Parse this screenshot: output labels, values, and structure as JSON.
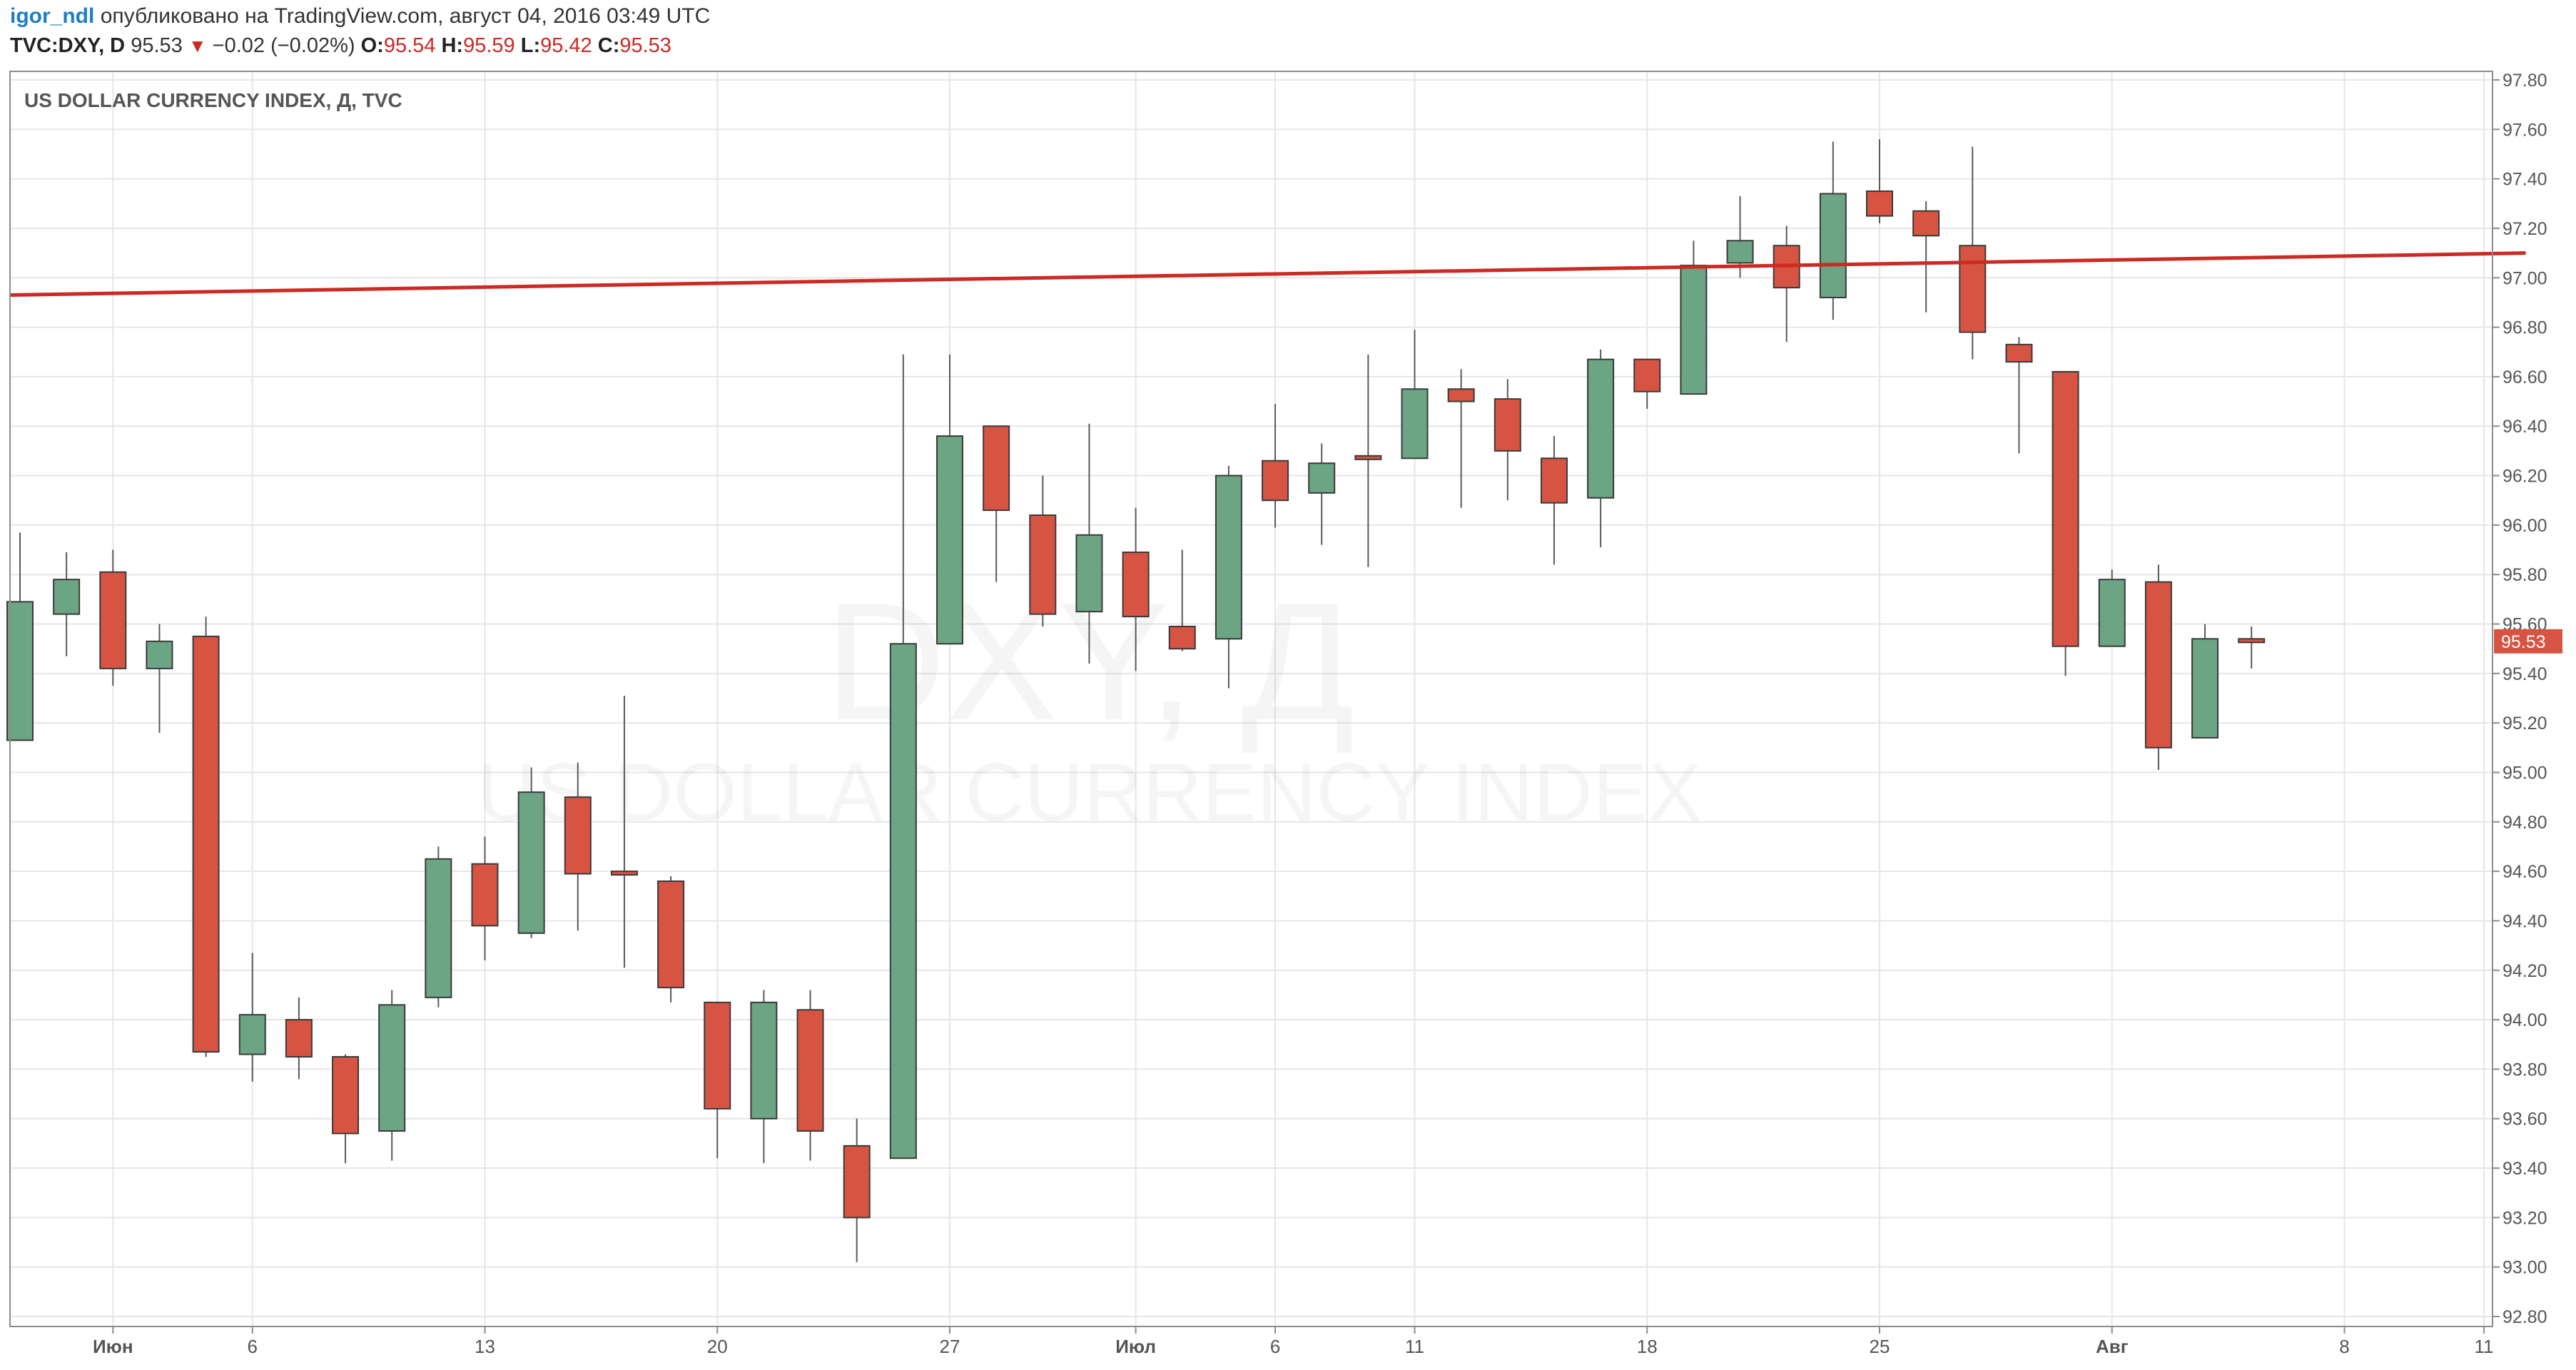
{
  "header": {
    "username": "igor_ndl",
    "published_text": "опубликовано на TradingView.com, август 04, 2016 03:49 UTC",
    "symbol": "TVC:DXY, D",
    "last": "95.53",
    "change": "−0.02 (−0.02%)",
    "o_label": "O:",
    "o_value": "95.54",
    "h_label": "H:",
    "h_value": "95.59",
    "l_label": "L:",
    "l_value": "95.42",
    "c_label": "C:",
    "c_value": "95.53"
  },
  "chart_data": {
    "type": "candlestick",
    "title": "US DOLLAR CURRENCY INDEX, Д, TVC",
    "watermark_symbol": "DXY, Д",
    "watermark_name": "US DOLLAR CURRENCY INDEX",
    "y_ticks": [
      "97.80",
      "97.60",
      "97.40",
      "97.20",
      "97.00",
      "96.80",
      "96.60",
      "96.40",
      "96.20",
      "96.00",
      "95.80",
      "95.60",
      "95.40",
      "95.20",
      "95.00",
      "94.80",
      "94.60",
      "94.40",
      "94.20",
      "94.00",
      "93.80",
      "93.60",
      "93.40",
      "93.20",
      "93.00",
      "92.80"
    ],
    "ylim": [
      92.8,
      97.8
    ],
    "x_labels": [
      {
        "label": "Июн",
        "bar": 2,
        "bold": true
      },
      {
        "label": "6",
        "bar": 5,
        "bold": false
      },
      {
        "label": "13",
        "bar": 10,
        "bold": false
      },
      {
        "label": "20",
        "bar": 15,
        "bold": false
      },
      {
        "label": "27",
        "bar": 20,
        "bold": false
      },
      {
        "label": "Июл",
        "bar": 24,
        "bold": true
      },
      {
        "label": "6",
        "bar": 27,
        "bold": false
      },
      {
        "label": "11",
        "bar": 30,
        "bold": false
      },
      {
        "label": "18",
        "bar": 35,
        "bold": false
      },
      {
        "label": "25",
        "bar": 40,
        "bold": false
      },
      {
        "label": "Авг",
        "bar": 45,
        "bold": true
      },
      {
        "label": "8",
        "bar": 50,
        "bold": false
      },
      {
        "label": "11",
        "bar": 53,
        "bold": false
      }
    ],
    "candles": [
      {
        "o": 95.13,
        "h": 95.97,
        "l": 95.13,
        "c": 95.69
      },
      {
        "o": 95.64,
        "h": 95.89,
        "l": 95.47,
        "c": 95.78
      },
      {
        "o": 95.81,
        "h": 95.9,
        "l": 95.35,
        "c": 95.42
      },
      {
        "o": 95.42,
        "h": 95.6,
        "l": 95.16,
        "c": 95.53
      },
      {
        "o": 95.55,
        "h": 95.63,
        "l": 93.85,
        "c": 93.87
      },
      {
        "o": 93.86,
        "h": 94.27,
        "l": 93.75,
        "c": 94.02
      },
      {
        "o": 94.0,
        "h": 94.09,
        "l": 93.76,
        "c": 93.85
      },
      {
        "o": 93.85,
        "h": 93.86,
        "l": 93.42,
        "c": 93.54
      },
      {
        "o": 93.55,
        "h": 94.12,
        "l": 93.43,
        "c": 94.06
      },
      {
        "o": 94.09,
        "h": 94.7,
        "l": 94.05,
        "c": 94.65
      },
      {
        "o": 94.63,
        "h": 94.74,
        "l": 94.24,
        "c": 94.38
      },
      {
        "o": 94.35,
        "h": 95.02,
        "l": 94.33,
        "c": 94.92
      },
      {
        "o": 94.9,
        "h": 95.04,
        "l": 94.36,
        "c": 94.59
      },
      {
        "o": 94.6,
        "h": 95.31,
        "l": 94.21,
        "c": 94.59
      },
      {
        "o": 94.56,
        "h": 94.58,
        "l": 94.07,
        "c": 94.13
      },
      {
        "o": 94.07,
        "h": 94.07,
        "l": 93.44,
        "c": 93.64
      },
      {
        "o": 93.6,
        "h": 94.12,
        "l": 93.42,
        "c": 94.07
      },
      {
        "o": 94.04,
        "h": 94.12,
        "l": 93.43,
        "c": 93.55
      },
      {
        "o": 93.49,
        "h": 93.6,
        "l": 93.02,
        "c": 93.2
      },
      {
        "o": 93.44,
        "h": 96.69,
        "l": 93.44,
        "c": 95.52
      },
      {
        "o": 95.52,
        "h": 96.69,
        "l": 95.52,
        "c": 96.36
      },
      {
        "o": 96.4,
        "h": 96.4,
        "l": 95.77,
        "c": 96.06
      },
      {
        "o": 96.04,
        "h": 96.2,
        "l": 95.59,
        "c": 95.64
      },
      {
        "o": 95.65,
        "h": 96.41,
        "l": 95.44,
        "c": 95.96
      },
      {
        "o": 95.89,
        "h": 96.07,
        "l": 95.41,
        "c": 95.63
      },
      {
        "o": 95.59,
        "h": 95.9,
        "l": 95.49,
        "c": 95.5
      },
      {
        "o": 95.54,
        "h": 96.24,
        "l": 95.34,
        "c": 96.2
      },
      {
        "o": 96.26,
        "h": 96.49,
        "l": 95.99,
        "c": 96.1
      },
      {
        "o": 96.13,
        "h": 96.33,
        "l": 95.92,
        "c": 96.25
      },
      {
        "o": 96.28,
        "h": 96.69,
        "l": 95.83,
        "c": 96.27
      },
      {
        "o": 96.27,
        "h": 96.79,
        "l": 96.27,
        "c": 96.55
      },
      {
        "o": 96.55,
        "h": 96.63,
        "l": 96.07,
        "c": 96.5
      },
      {
        "o": 96.51,
        "h": 96.59,
        "l": 96.1,
        "c": 96.3
      },
      {
        "o": 96.27,
        "h": 96.36,
        "l": 95.84,
        "c": 96.09
      },
      {
        "o": 96.11,
        "h": 96.71,
        "l": 95.91,
        "c": 96.67
      },
      {
        "o": 96.67,
        "h": 96.67,
        "l": 96.47,
        "c": 96.54
      },
      {
        "o": 96.53,
        "h": 97.15,
        "l": 96.53,
        "c": 97.05
      },
      {
        "o": 97.06,
        "h": 97.33,
        "l": 97.0,
        "c": 97.15
      },
      {
        "o": 97.13,
        "h": 97.21,
        "l": 96.74,
        "c": 96.96
      },
      {
        "o": 96.92,
        "h": 97.55,
        "l": 96.83,
        "c": 97.34
      },
      {
        "o": 97.35,
        "h": 97.56,
        "l": 97.22,
        "c": 97.25
      },
      {
        "o": 97.27,
        "h": 97.31,
        "l": 96.86,
        "c": 97.17
      },
      {
        "o": 97.13,
        "h": 97.53,
        "l": 96.67,
        "c": 96.78
      },
      {
        "o": 96.73,
        "h": 96.76,
        "l": 96.29,
        "c": 96.66
      },
      {
        "o": 96.62,
        "h": 96.62,
        "l": 95.39,
        "c": 95.51
      },
      {
        "o": 95.51,
        "h": 95.82,
        "l": 95.51,
        "c": 95.78
      },
      {
        "o": 95.77,
        "h": 95.84,
        "l": 95.01,
        "c": 95.1
      },
      {
        "o": 95.14,
        "h": 95.6,
        "l": 95.14,
        "c": 95.54
      },
      {
        "o": 95.54,
        "h": 95.59,
        "l": 95.42,
        "c": 95.53
      }
    ],
    "trend_line": {
      "bar_start": -0.2,
      "value_start": 96.93,
      "bar_end": 53.9,
      "value_end": 97.1
    },
    "last_price_label": "95.53",
    "colors": {
      "up": "#6ba583",
      "down": "#d75442",
      "trend": "#cc2a24",
      "grid": "#e6e6e6",
      "axis_text": "#555555"
    }
  }
}
